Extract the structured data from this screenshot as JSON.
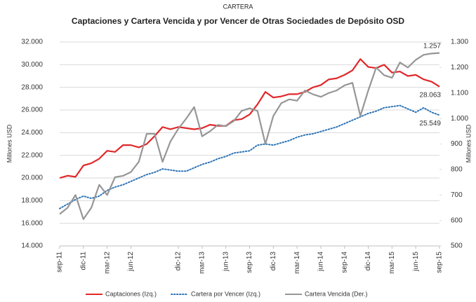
{
  "chart_data": {
    "type": "line",
    "supertitle": "CARTERA",
    "title": "Captaciones y Cartera Vencida y por Vencer de Otras Sociedades de Depósito OSD",
    "ylabel": "Millones USD",
    "y2label": "Millones USD",
    "categories": [
      "sep-11",
      null,
      null,
      "dic-11",
      null,
      null,
      "mar-12",
      null,
      null,
      "jun-12",
      null,
      null,
      null,
      null,
      null,
      "dic-12",
      null,
      null,
      "mar-13",
      null,
      null,
      "jun-13",
      null,
      null,
      "sep-13",
      null,
      null,
      "dic-13",
      null,
      null,
      "mar-14",
      null,
      null,
      "jun-14",
      null,
      null,
      "sep-14",
      null,
      null,
      "dic-14",
      null,
      null,
      "mar-15",
      null,
      null,
      "jun-15",
      null,
      null,
      "sep-15"
    ],
    "series": [
      {
        "name": "Captaciones (Izq.)",
        "color": "#e0282b",
        "style": "solid",
        "axis": "y",
        "values": [
          20000,
          20200,
          20100,
          21100,
          21300,
          21700,
          22400,
          22300,
          22900,
          22900,
          22700,
          23000,
          23700,
          24500,
          24300,
          24500,
          24400,
          24300,
          24400,
          24700,
          24600,
          24600,
          25100,
          25200,
          25600,
          26500,
          27600,
          27100,
          27200,
          27400,
          27400,
          27600,
          28000,
          28200,
          28700,
          28800,
          29100,
          29500,
          30500,
          29800,
          29700,
          30000,
          29300,
          29400,
          29000,
          29100,
          28700,
          28500,
          28063
        ],
        "value_labels": [
          null,
          null,
          null,
          null,
          null,
          null,
          null,
          null,
          null,
          null,
          null,
          null,
          null,
          null,
          null,
          null,
          null,
          null,
          null,
          null,
          null,
          null,
          null,
          null,
          null,
          null,
          null,
          null,
          null,
          null,
          null,
          null,
          null,
          null,
          null,
          null,
          null,
          null,
          null,
          null,
          null,
          null,
          null,
          null,
          null,
          null,
          null,
          null,
          "28.063"
        ],
        "label_color": "#e0282b"
      },
      {
        "name": "Cartera por Vencer (Izq.)",
        "color": "#2e75b6",
        "style": "dotted",
        "axis": "y",
        "values": [
          17300,
          17700,
          18100,
          18400,
          18200,
          18400,
          18900,
          19200,
          19400,
          19700,
          20000,
          20300,
          20500,
          20800,
          20700,
          20600,
          20600,
          20900,
          21200,
          21400,
          21700,
          21900,
          22200,
          22300,
          22400,
          22900,
          23000,
          22900,
          23100,
          23300,
          23600,
          23800,
          23900,
          24100,
          24300,
          24500,
          24800,
          25100,
          25400,
          25700,
          25900,
          26200,
          26300,
          26400,
          26100,
          25800,
          26200,
          25800,
          25549
        ],
        "value_labels": [
          null,
          null,
          null,
          null,
          null,
          null,
          null,
          null,
          null,
          null,
          null,
          null,
          null,
          null,
          null,
          null,
          null,
          null,
          null,
          null,
          null,
          null,
          null,
          null,
          null,
          null,
          null,
          null,
          null,
          null,
          null,
          null,
          null,
          null,
          null,
          null,
          null,
          null,
          null,
          null,
          null,
          null,
          null,
          null,
          null,
          null,
          null,
          null,
          "25.549"
        ],
        "label_color": "#2e6e6e"
      },
      {
        "name": "Cartera Vencida (Der.)",
        "color": "#969696",
        "style": "solid",
        "axis": "y2",
        "values": [
          625,
          650,
          700,
          605,
          650,
          740,
          700,
          770,
          775,
          790,
          830,
          940,
          940,
          830,
          910,
          960,
          1000,
          1045,
          930,
          950,
          975,
          970,
          990,
          1030,
          1040,
          1030,
          900,
          1010,
          1060,
          1075,
          1070,
          1110,
          1095,
          1085,
          1100,
          1110,
          1130,
          1140,
          1010,
          1110,
          1200,
          1170,
          1160,
          1220,
          1200,
          1230,
          1250,
          1255,
          1257
        ],
        "value_labels": [
          null,
          null,
          null,
          null,
          null,
          null,
          null,
          null,
          null,
          null,
          null,
          null,
          null,
          null,
          null,
          null,
          null,
          null,
          null,
          null,
          null,
          null,
          null,
          null,
          null,
          null,
          null,
          null,
          null,
          null,
          null,
          null,
          null,
          null,
          null,
          null,
          null,
          null,
          null,
          null,
          null,
          null,
          null,
          null,
          null,
          null,
          null,
          null,
          "1.257"
        ],
        "label_color": "#333333"
      }
    ],
    "ylim": [
      14000,
      32000
    ],
    "yticks": [
      {
        "value": 14000,
        "label": "14.000"
      },
      {
        "value": 16000,
        "label": "16.000"
      },
      {
        "value": 18000,
        "label": "18.000"
      },
      {
        "value": 20000,
        "label": "20.000"
      },
      {
        "value": 22000,
        "label": "22.000"
      },
      {
        "value": 24000,
        "label": "24.000"
      },
      {
        "value": 26000,
        "label": "26.000"
      },
      {
        "value": 28000,
        "label": "28.000"
      },
      {
        "value": 30000,
        "label": "30.000"
      },
      {
        "value": 32000,
        "label": "32.000"
      }
    ],
    "y2lim": [
      500,
      1300
    ],
    "y2ticks": [
      500,
      600,
      700,
      800,
      900,
      {
        "value": 1000,
        "label": "1.000"
      },
      {
        "value": 1100,
        "label": "1.100"
      },
      {
        "value": 1200,
        "label": "1.200"
      },
      {
        "value": 1300,
        "label": "1.300"
      }
    ],
    "grid": true,
    "legend": "bottom"
  }
}
